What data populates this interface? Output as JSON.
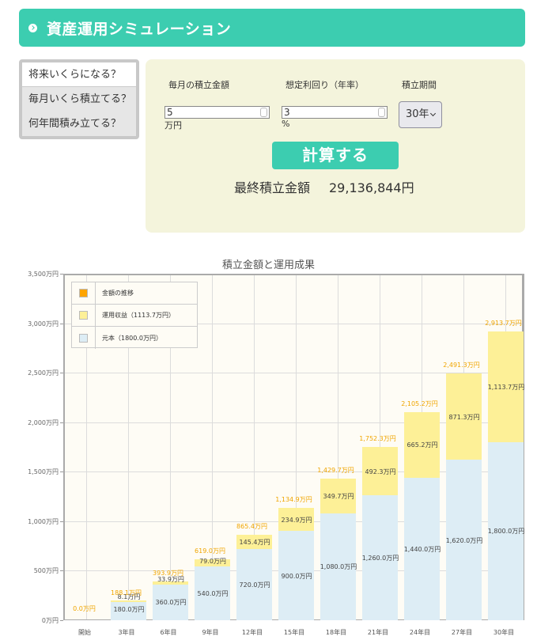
{
  "header": {
    "title": "資産運用シミュレーション",
    "icon": "chevron-right-circle-icon"
  },
  "tabs": [
    {
      "label": "将来いくらになる？",
      "active": true
    },
    {
      "label": "毎月いくら積立てる？",
      "active": false
    },
    {
      "label": "何年間積み立てる？",
      "active": false
    }
  ],
  "form": {
    "monthly": {
      "label": "毎月の積立金額",
      "value": "5",
      "unit": "万円"
    },
    "rate": {
      "label": "想定利回り（年率）",
      "value": "3",
      "unit": "%"
    },
    "period": {
      "label": "積立期間",
      "value": "30年"
    },
    "calc_label": "計算する"
  },
  "result": {
    "label": "最終積立金額",
    "value": "29,136,844円"
  },
  "colors": {
    "accent": "#3ccdb0",
    "principal": "#ddedf5",
    "gain": "#fdf097",
    "total": "#f0a500",
    "panel": "#f4f4dc"
  },
  "chart_data": {
    "type": "bar",
    "title": "積立金額と運用成果",
    "stacked": true,
    "categories": [
      "開始",
      "3年目",
      "6年目",
      "9年目",
      "12年目",
      "15年目",
      "18年目",
      "21年目",
      "24年目",
      "27年目",
      "30年目"
    ],
    "series": [
      {
        "name": "元本（1800.0万円）",
        "values": [
          0,
          180.0,
          360.0,
          540.0,
          720.0,
          900.0,
          1080.0,
          1260.0,
          1440.0,
          1620.0,
          1800.0
        ],
        "labels": [
          "",
          "180.0万円",
          "360.0万円",
          "540.0万円",
          "720.0万円",
          "900.0万円",
          "1,080.0万円",
          "1,260.0万円",
          "1,440.0万円",
          "1,620.0万円",
          "1,800.0万円"
        ]
      },
      {
        "name": "運用収益（1113.7万円）",
        "values": [
          0,
          8.1,
          33.9,
          79.0,
          145.4,
          234.9,
          349.7,
          492.3,
          665.2,
          871.3,
          1113.7
        ],
        "labels": [
          "",
          "8.1万円",
          "33.9万円",
          "79.0万円",
          "145.4万円",
          "234.9万円",
          "349.7万円",
          "492.3万円",
          "665.2万円",
          "871.3万円",
          "1,113.7万円"
        ]
      },
      {
        "name": "金額の推移",
        "values": [
          0.0,
          188.1,
          393.9,
          619.0,
          865.4,
          1134.9,
          1429.7,
          1752.3,
          2105.2,
          2491.3,
          2913.7
        ],
        "labels": [
          "0.0万円",
          "188.1万円",
          "393.9万円",
          "619.0万円",
          "865.4万円",
          "1,134.9万円",
          "1,429.7万円",
          "1,752.3万円",
          "2,105.2万円",
          "2,491.3万円",
          "2,913.7万円"
        ]
      }
    ],
    "legend": [
      "金額の推移",
      "運用収益（1113.7万円）",
      "元本（1800.0万円）"
    ],
    "yticks": [
      "0万円",
      "500万円",
      "1,000万円",
      "1,500万円",
      "2,000万円",
      "2,500万円",
      "3,000万円",
      "3,500万円"
    ],
    "ylim": [
      0,
      3500
    ],
    "xlabel": "",
    "ylabel": "",
    "legend_position": "top-left inside"
  }
}
